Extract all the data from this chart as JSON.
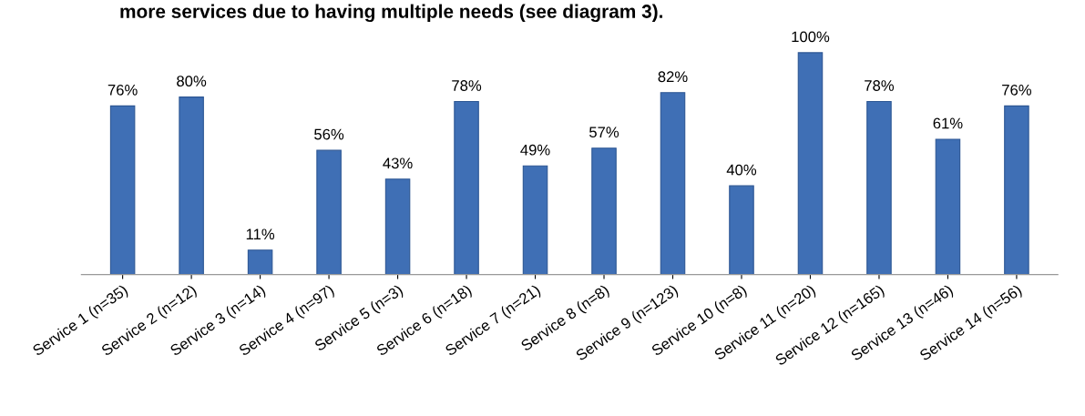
{
  "chart_data": {
    "type": "bar",
    "title": "more services due to having multiple needs (see diagram 3).",
    "categories": [
      "Service 1 (n=35)",
      "Service 2 (n=12)",
      "Service 3 (n=14)",
      "Service 4 (n=97)",
      "Service 5 (n=3)",
      "Service 6 (n=18)",
      "Service 7 (n=21)",
      "Service 8 (n=8)",
      "Service 9 (n=123)",
      "Service 10 (n=8)",
      "Service 11 (n=20)",
      "Service 12 (n=165)",
      "Service 13 (n=46)",
      "Service 14 (n=56)"
    ],
    "values": [
      76,
      80,
      11,
      56,
      43,
      78,
      49,
      57,
      82,
      40,
      100,
      78,
      61,
      76
    ],
    "value_labels": [
      "76%",
      "80%",
      "11%",
      "56%",
      "43%",
      "78%",
      "49%",
      "57%",
      "82%",
      "40%",
      "100%",
      "78%",
      "61%",
      "76%"
    ],
    "color": "#3f6fb5",
    "tick_labels": "x",
    "grid": false
  }
}
